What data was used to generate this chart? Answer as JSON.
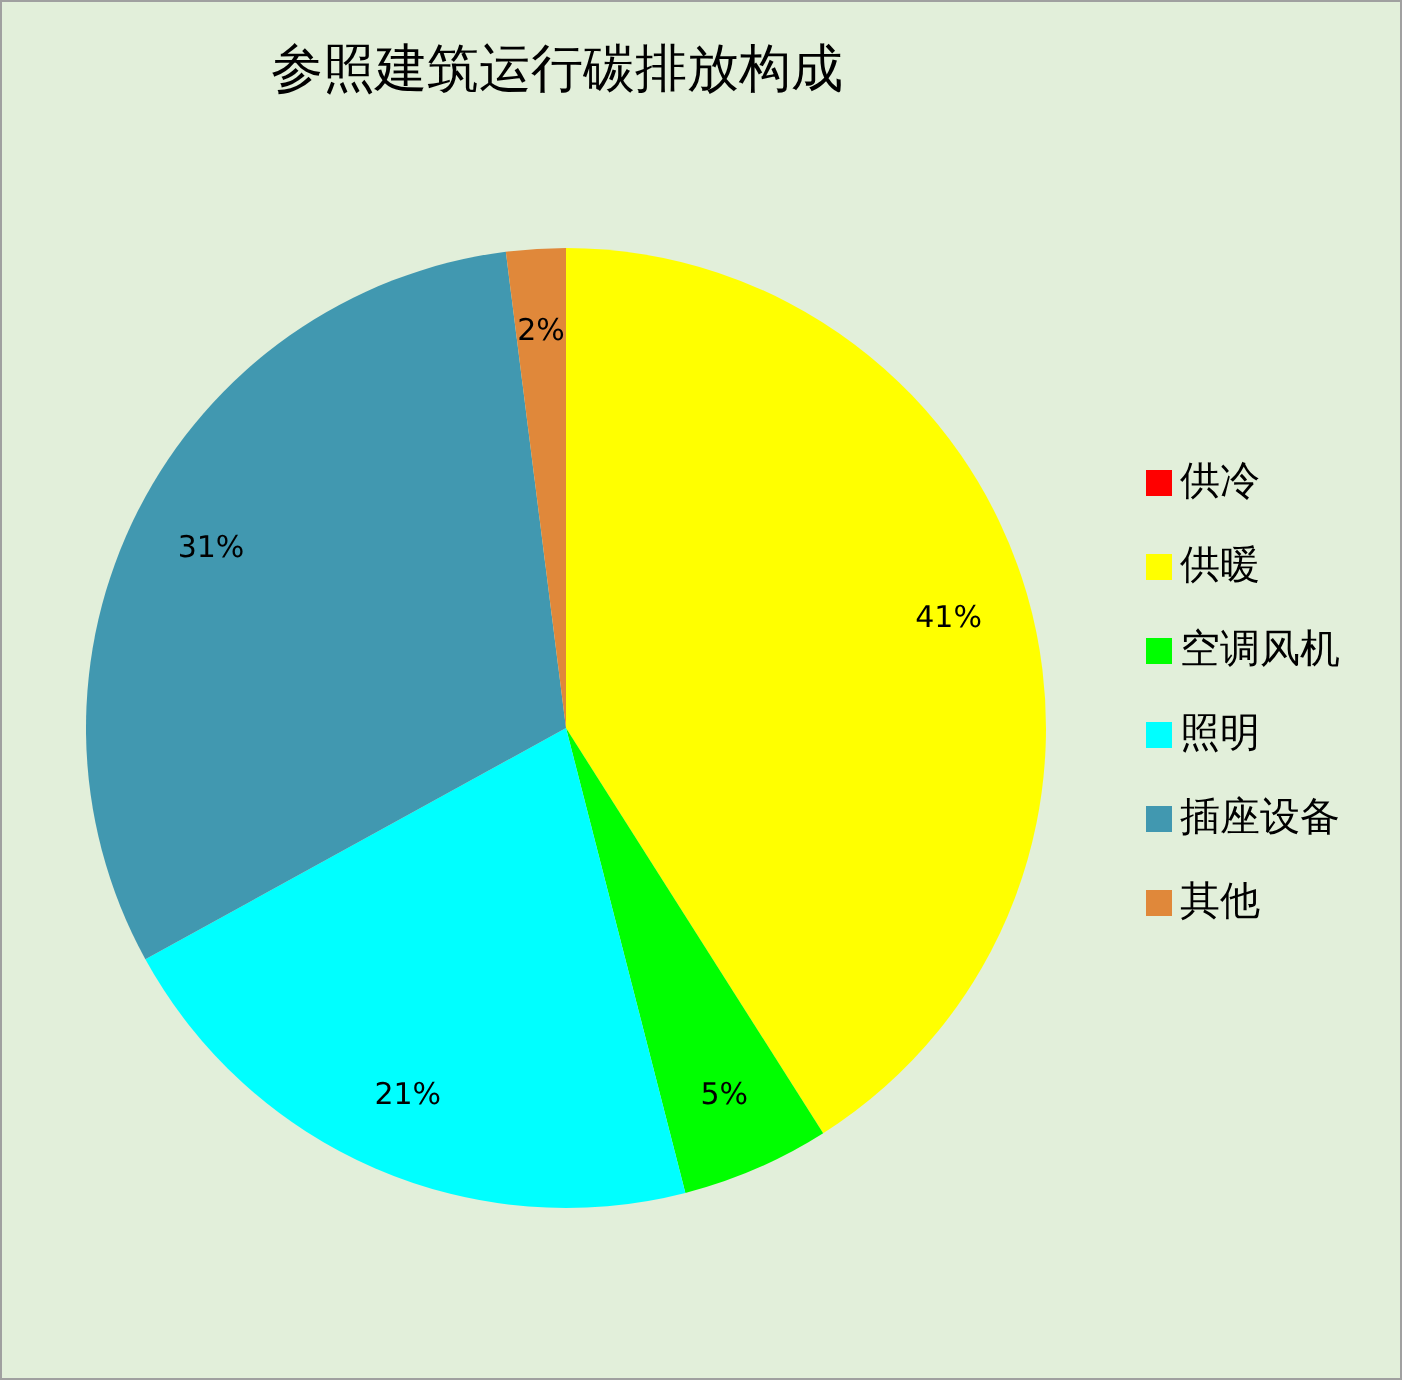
{
  "chart_data": {
    "type": "pie",
    "title": "参照建筑运行碳排放构成",
    "categories": [
      "供冷",
      "供暖",
      "空调风机",
      "照明",
      "插座设备",
      "其他"
    ],
    "values": [
      0,
      41,
      5,
      21,
      31,
      2
    ],
    "colors": [
      "#ff0000",
      "#ffff00",
      "#00ff00",
      "#00ffff",
      "#4198b0",
      "#e0883a"
    ],
    "value_labels": [
      null,
      "41%",
      "5%",
      "21%",
      "31%",
      "2%"
    ],
    "legend": "right"
  }
}
